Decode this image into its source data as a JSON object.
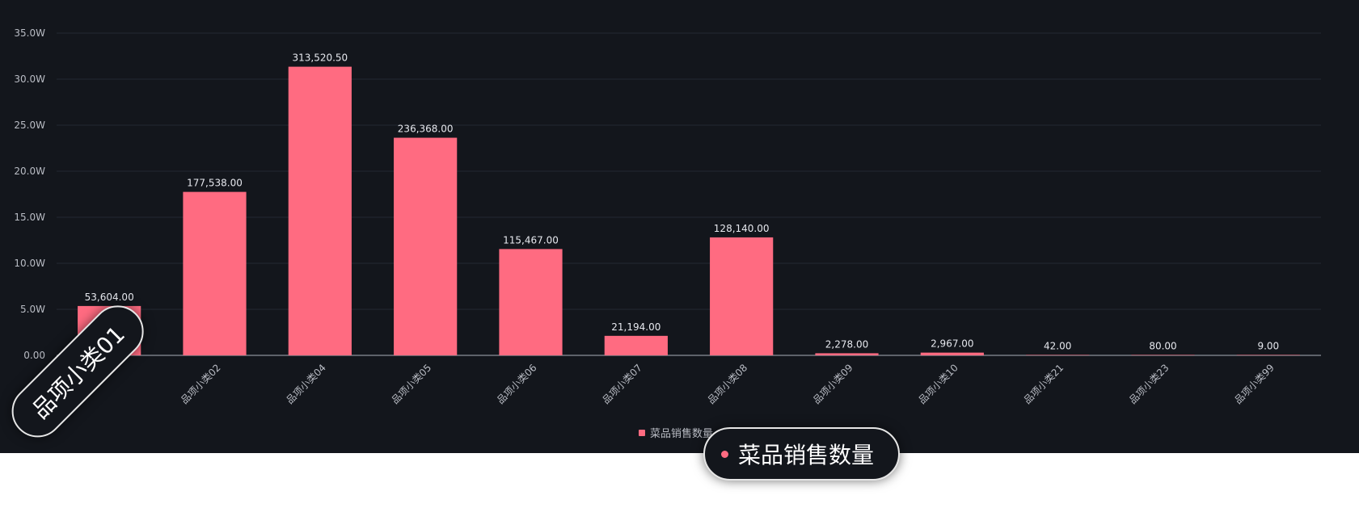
{
  "chart_data": {
    "type": "bar",
    "categories": [
      "品项小类01",
      "品项小类02",
      "品项小类04",
      "品项小类05",
      "品项小类06",
      "品项小类07",
      "品项小类08",
      "品项小类09",
      "品项小类10",
      "品项小类21",
      "品项小类23",
      "品项小类99"
    ],
    "series": [
      {
        "name": "菜品销售数量",
        "values": [
          53604.0,
          177538.0,
          313520.5,
          236368.0,
          115467.0,
          21194.0,
          128140.0,
          2278.0,
          2967.0,
          42.0,
          80.0,
          9.0
        ],
        "labels": [
          "53,604.00",
          "177,538.00",
          "313,520.50",
          "236,368.00",
          "115,467.00",
          "21,194.00",
          "128,140.00",
          "2,278.00",
          "2,967.00",
          "42.00",
          "80.00",
          "9.00"
        ]
      }
    ],
    "y_ticks": [
      "0.00",
      "5.0W",
      "10.0W",
      "15.0W",
      "20.0W",
      "25.0W",
      "30.0W",
      "35.0W"
    ],
    "ylim": [
      0,
      350000
    ],
    "grid": true,
    "legend_position": "bottom-center",
    "bar_color": "#ff6b81"
  },
  "legend": {
    "label": "菜品销售数量"
  },
  "tooltips": {
    "category": "品项小类01",
    "series": "菜品销售数量"
  }
}
